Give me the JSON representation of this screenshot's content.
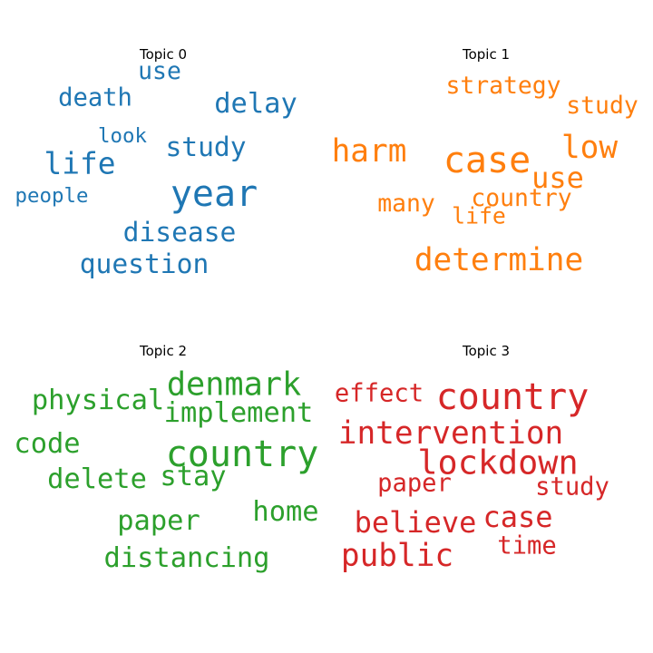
{
  "chart_data": [
    {
      "type": "wordcloud",
      "title": "Topic 0",
      "color": "#1f77b4",
      "words": [
        {
          "text": "year",
          "weight": 1.0
        },
        {
          "text": "life",
          "weight": 0.82
        },
        {
          "text": "delay",
          "weight": 0.76
        },
        {
          "text": "study",
          "weight": 0.74
        },
        {
          "text": "disease",
          "weight": 0.74
        },
        {
          "text": "question",
          "weight": 0.74
        },
        {
          "text": "death",
          "weight": 0.68
        },
        {
          "text": "use",
          "weight": 0.66
        },
        {
          "text": "people",
          "weight": 0.56
        },
        {
          "text": "look",
          "weight": 0.56
        }
      ]
    },
    {
      "type": "wordcloud",
      "title": "Topic 1",
      "color": "#ff7f0e",
      "words": [
        {
          "text": "case",
          "weight": 1.0
        },
        {
          "text": "harm",
          "weight": 0.86
        },
        {
          "text": "low",
          "weight": 0.86
        },
        {
          "text": "determine",
          "weight": 0.86
        },
        {
          "text": "use",
          "weight": 0.8
        },
        {
          "text": "strategy",
          "weight": 0.66
        },
        {
          "text": "study",
          "weight": 0.66
        },
        {
          "text": "country",
          "weight": 0.66
        },
        {
          "text": "many",
          "weight": 0.66
        },
        {
          "text": "life",
          "weight": 0.62
        }
      ]
    },
    {
      "type": "wordcloud",
      "title": "Topic 2",
      "color": "#2ca02c",
      "words": [
        {
          "text": "country",
          "weight": 1.0
        },
        {
          "text": "denmark",
          "weight": 0.88
        },
        {
          "text": "physical",
          "weight": 0.76
        },
        {
          "text": "implement",
          "weight": 0.76
        },
        {
          "text": "code",
          "weight": 0.76
        },
        {
          "text": "delete",
          "weight": 0.76
        },
        {
          "text": "stay",
          "weight": 0.76
        },
        {
          "text": "home",
          "weight": 0.76
        },
        {
          "text": "paper",
          "weight": 0.76
        },
        {
          "text": "distancing",
          "weight": 0.76
        }
      ]
    },
    {
      "type": "wordcloud",
      "title": "Topic 3",
      "color": "#d62728",
      "words": [
        {
          "text": "country",
          "weight": 1.0
        },
        {
          "text": "lockdown",
          "weight": 0.92
        },
        {
          "text": "intervention",
          "weight": 0.86
        },
        {
          "text": "public",
          "weight": 0.86
        },
        {
          "text": "believe",
          "weight": 0.8
        },
        {
          "text": "case",
          "weight": 0.8
        },
        {
          "text": "effect",
          "weight": 0.68
        },
        {
          "text": "paper",
          "weight": 0.68
        },
        {
          "text": "study",
          "weight": 0.68
        },
        {
          "text": "time",
          "weight": 0.68
        }
      ]
    }
  ]
}
